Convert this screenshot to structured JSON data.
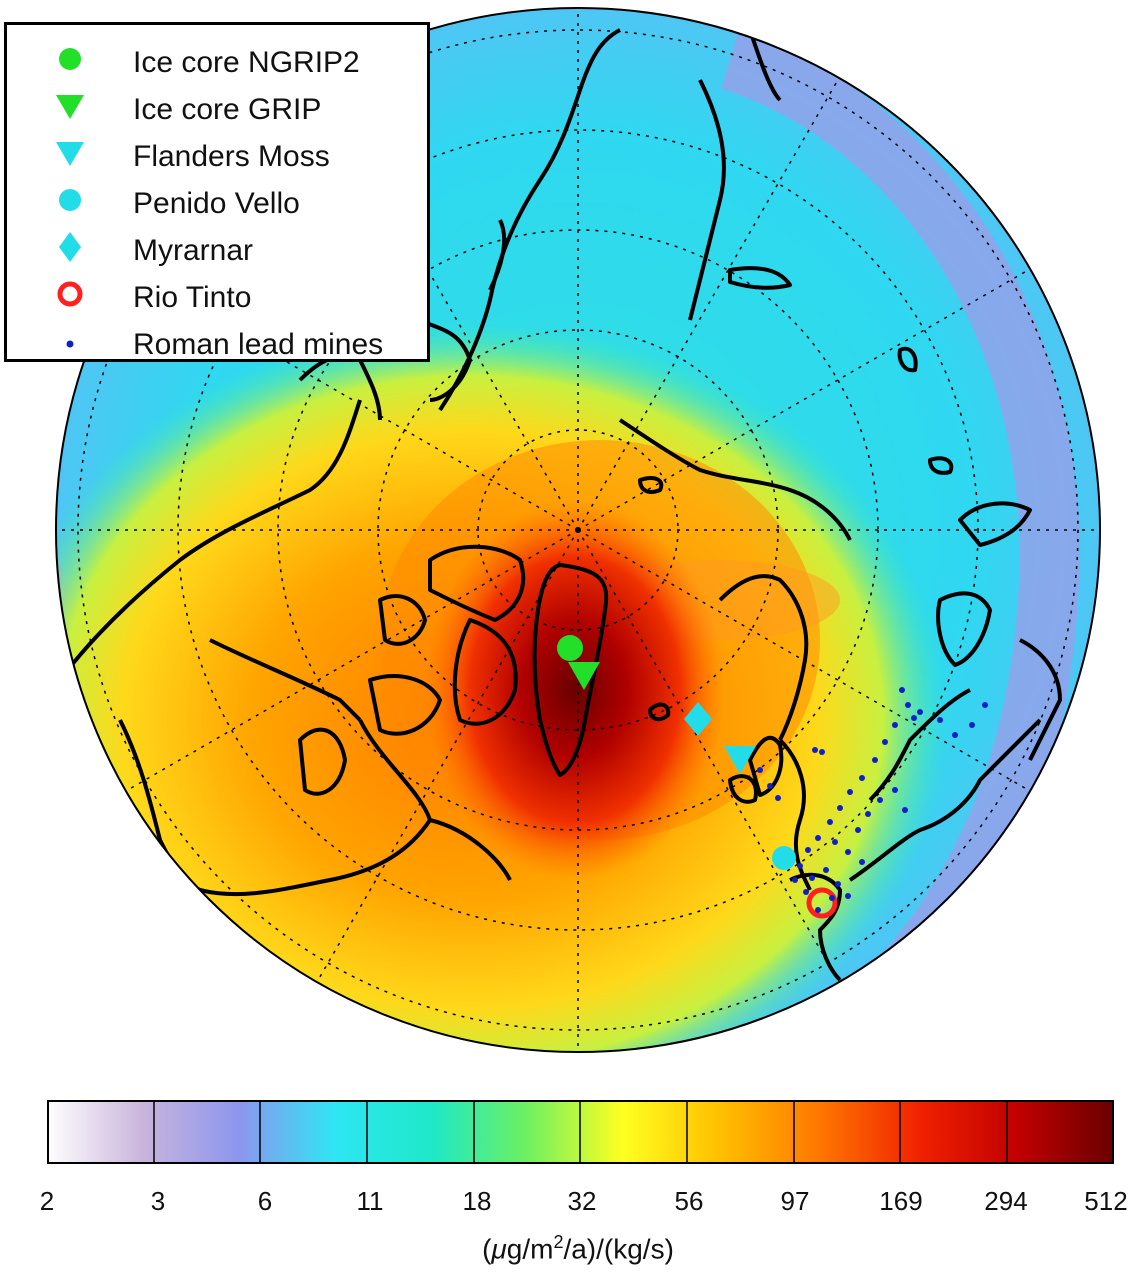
{
  "legend": {
    "items": [
      {
        "label": "Ice core NGRIP2",
        "marker": "circle",
        "color": "#22e02a"
      },
      {
        "label": "Ice core GRIP",
        "marker": "triangle-down",
        "color": "#22e02a"
      },
      {
        "label": "Flanders Moss",
        "marker": "triangle-down",
        "color": "#22dde8"
      },
      {
        "label": "Penido Vello",
        "marker": "circle",
        "color": "#22dde8"
      },
      {
        "label": "Myrarnar",
        "marker": "diamond",
        "color": "#22dde8"
      },
      {
        "label": "Rio Tinto",
        "marker": "ring",
        "color": "#ff2020"
      },
      {
        "label": "Roman lead mines",
        "marker": "dot",
        "color": "#1020c8"
      }
    ]
  },
  "colorbar": {
    "ticks": [
      "2",
      "3",
      "6",
      "11",
      "18",
      "32",
      "56",
      "97",
      "169",
      "294",
      "512"
    ],
    "unit_prefix": "(",
    "unit_mu": "μ",
    "unit_mid": "g/m",
    "unit_sup": "2",
    "unit_suffix": "/a)/(kg/s)",
    "colors": [
      "#ffffff",
      "#c9b4dc",
      "#8c96ee",
      "#2ee6f4",
      "#1ee8c8",
      "#6ef060",
      "#ffff20",
      "#ffa400",
      "#ff5a00",
      "#e80000",
      "#b80000",
      "#6a0000"
    ]
  },
  "map": {
    "projection": "north-polar-stereographic",
    "land_outline_color": "#000000"
  }
}
